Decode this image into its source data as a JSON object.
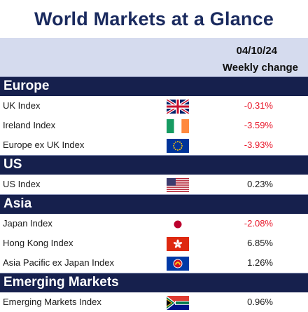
{
  "title": "World Markets at a Glance",
  "header": {
    "date": "04/10/24",
    "change_label": "Weekly change"
  },
  "sections": {
    "europe": "Europe",
    "us": "US",
    "asia": "Asia",
    "em": "Emerging Markets"
  },
  "rows": {
    "uk": {
      "label": "UK Index",
      "value": "-0.31%",
      "flag": "uk-flag-icon"
    },
    "ireland": {
      "label": "Ireland Index",
      "value": "-3.59%",
      "flag": "ireland-flag-icon"
    },
    "europe_ex_uk": {
      "label": "Europe ex UK Index",
      "value": "-3.93%",
      "flag": "eu-flag-icon"
    },
    "us": {
      "label": "US Index",
      "value": "0.23%",
      "flag": "us-flag-icon"
    },
    "japan": {
      "label": "Japan Index",
      "value": "-2.08%",
      "flag": "japan-flag-icon"
    },
    "hong_kong": {
      "label": "Hong Kong Index",
      "value": "6.85%",
      "flag": "hong-kong-flag-icon"
    },
    "apac_ex_japan": {
      "label": "Asia Pacific ex Japan Index",
      "value": "1.26%",
      "flag": "asean-flag-icon"
    },
    "emerging": {
      "label": "Emerging Markets Index",
      "value": "0.96%",
      "flag": "south-africa-flag-icon"
    }
  },
  "colors": {
    "navy": "#16204d",
    "title": "#1a2a5e",
    "header_band": "#d5dbee",
    "negative": "#e8192c",
    "positive": "#1a1a1a"
  }
}
